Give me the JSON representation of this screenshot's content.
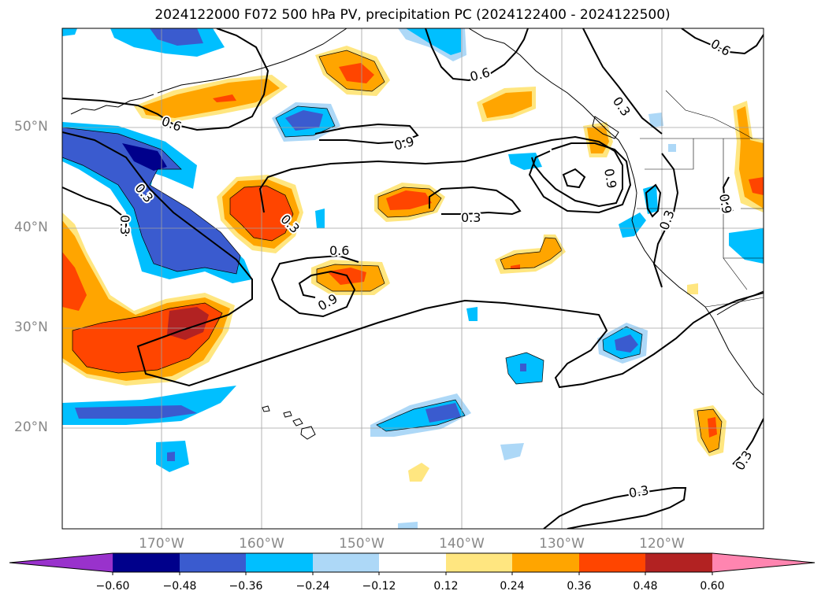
{
  "title": "2024122000 F072 500 hPa PV, precipitation PC (2024122400 - 2024122500)",
  "lat_labels": [
    "50°N",
    "40°N",
    "30°N",
    "20°N"
  ],
  "lon_labels": [
    "170°W",
    "160°W",
    "150°W",
    "140°W",
    "130°W",
    "120°W"
  ],
  "contour_labels": [
    "0.6",
    "0.6",
    "0.6",
    "0.3",
    "0.9",
    "0.3",
    "0.3",
    "0.3",
    "0.3",
    "0.9",
    "0.3",
    "0.6",
    "0.9",
    "0.9",
    "0.6",
    "0.3",
    "0.3"
  ],
  "colorbar": {
    "ticks": [
      "−0.60",
      "−0.48",
      "−0.36",
      "−0.24",
      "−0.12",
      "0.12",
      "0.24",
      "0.36",
      "0.48",
      "0.60"
    ],
    "colors": [
      "#9932cc",
      "#00008b",
      "#3a5bcf",
      "#00bfff",
      "#add8f7",
      "#ffffff",
      "#ffe680",
      "#ffa500",
      "#ff4500",
      "#b22222",
      "#ff85b0"
    ]
  },
  "colors": {
    "line": "#000000",
    "grid": "#a0a0a0",
    "tick_label": "#888888"
  }
}
